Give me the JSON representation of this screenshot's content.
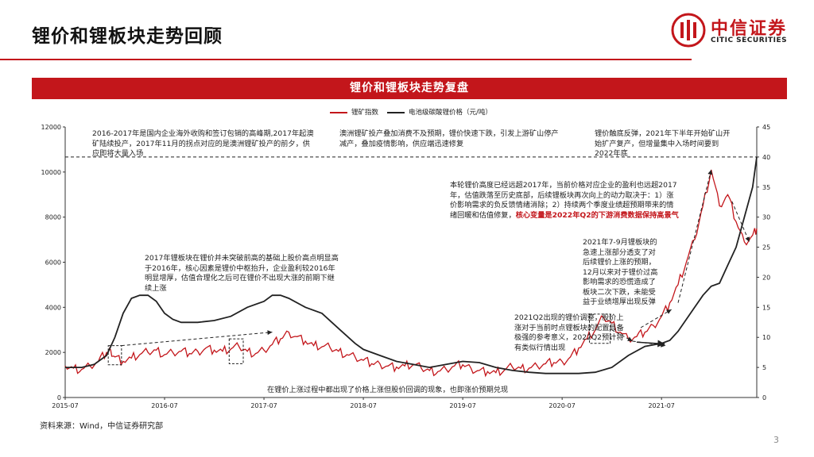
{
  "page": {
    "title": "锂价和锂板块走势回顾",
    "banner": "锂价和锂板块走势复盘",
    "source": "资料来源：Wind，中信证券研究部",
    "page_number": "3",
    "logo": {
      "cn": "中信证券",
      "en": "CITIC SECURITIES"
    },
    "colors": {
      "accent": "#c3161b",
      "dark_line": "#222222"
    }
  },
  "chart_data": {
    "type": "line",
    "title": "锂价和锂板块走势复盘",
    "x_ticks": [
      "2015-07",
      "2016-07",
      "2017-07",
      "2018-07",
      "2019-07",
      "2020-07",
      "2021-07"
    ],
    "x_tick_positions": [
      0,
      12,
      24,
      36,
      48,
      60,
      72
    ],
    "x_range": [
      0,
      83.5
    ],
    "ylim_left": [
      0,
      12000
    ],
    "y_ticks_left": [
      0,
      2000,
      4000,
      6000,
      8000,
      10000,
      12000
    ],
    "ylim_right": [
      0,
      45
    ],
    "y_ticks_right": [
      0,
      5,
      10,
      15,
      20,
      25,
      30,
      35,
      40,
      45
    ],
    "reference_line_right": 40,
    "grid": false,
    "legend_position": "top-center",
    "series": [
      {
        "name": "锂矿指数",
        "axis": "left",
        "color": "#c3161b",
        "points": [
          [
            0,
            1400
          ],
          [
            1,
            1300
          ],
          [
            2,
            1250
          ],
          [
            3,
            1400
          ],
          [
            4,
            1600
          ],
          [
            5,
            2000
          ],
          [
            5.5,
            2100
          ],
          [
            6,
            1800
          ],
          [
            7,
            1600
          ],
          [
            8,
            1750
          ],
          [
            9,
            1900
          ],
          [
            10,
            2000
          ],
          [
            11,
            2100
          ],
          [
            12,
            1900
          ],
          [
            13,
            2000
          ],
          [
            14,
            2050
          ],
          [
            15,
            1950
          ],
          [
            16,
            2050
          ],
          [
            17,
            2200
          ],
          [
            18,
            2100
          ],
          [
            19,
            2050
          ],
          [
            20,
            2150
          ],
          [
            21,
            2250
          ],
          [
            22,
            2050
          ],
          [
            23,
            1950
          ],
          [
            24,
            2100
          ],
          [
            25,
            2350
          ],
          [
            26,
            2600
          ],
          [
            27,
            2900
          ],
          [
            28,
            2700
          ],
          [
            29,
            2500
          ],
          [
            30,
            2300
          ],
          [
            31,
            2250
          ],
          [
            32,
            2200
          ],
          [
            33,
            2050
          ],
          [
            34,
            1900
          ],
          [
            35,
            1800
          ],
          [
            36,
            1650
          ],
          [
            37,
            1500
          ],
          [
            38,
            1500
          ],
          [
            39,
            1400
          ],
          [
            40,
            1350
          ],
          [
            41,
            1400
          ],
          [
            42,
            1450
          ],
          [
            43,
            1300
          ],
          [
            44,
            1200
          ],
          [
            45,
            1150
          ],
          [
            46,
            1250
          ],
          [
            47,
            1400
          ],
          [
            48,
            1450
          ],
          [
            49,
            1300
          ],
          [
            50,
            1200
          ],
          [
            51,
            1150
          ],
          [
            52,
            1100
          ],
          [
            53,
            1200
          ],
          [
            54,
            1350
          ],
          [
            55,
            1300
          ],
          [
            56,
            1300
          ],
          [
            57,
            1400
          ],
          [
            58,
            1500
          ],
          [
            59,
            1550
          ],
          [
            60,
            1600
          ],
          [
            61,
            1800
          ],
          [
            62,
            2200
          ],
          [
            63,
            2600
          ],
          [
            64,
            3000
          ],
          [
            65,
            3550
          ],
          [
            66,
            3300
          ],
          [
            67,
            2900
          ],
          [
            68,
            2600
          ],
          [
            69,
            2700
          ],
          [
            70,
            2900
          ],
          [
            71,
            3200
          ],
          [
            72,
            3600
          ],
          [
            73,
            4200
          ],
          [
            74,
            5000
          ],
          [
            75,
            6000
          ],
          [
            76,
            7000
          ],
          [
            77,
            8500
          ],
          [
            78,
            10100
          ],
          [
            79,
            8500
          ],
          [
            80,
            9000
          ],
          [
            81,
            7800
          ],
          [
            82,
            6900
          ],
          [
            83,
            7200
          ],
          [
            83.5,
            7500
          ]
        ]
      },
      {
        "name": "电池级碳酸锂价格（元/吨）",
        "axis": "right",
        "color": "#222222",
        "points": [
          [
            0,
            5
          ],
          [
            2,
            5
          ],
          [
            3.5,
            5.5
          ],
          [
            5,
            7
          ],
          [
            6,
            10
          ],
          [
            7,
            14
          ],
          [
            8,
            16.5
          ],
          [
            9,
            17
          ],
          [
            10,
            17
          ],
          [
            11,
            16
          ],
          [
            12,
            14
          ],
          [
            13,
            13
          ],
          [
            14,
            12.5
          ],
          [
            16,
            12.5
          ],
          [
            18,
            12.8
          ],
          [
            20,
            13.5
          ],
          [
            22,
            15
          ],
          [
            24,
            16
          ],
          [
            25,
            17
          ],
          [
            26,
            17
          ],
          [
            27,
            16.5
          ],
          [
            29,
            15
          ],
          [
            31,
            14
          ],
          [
            33,
            11.5
          ],
          [
            35,
            9
          ],
          [
            36,
            8
          ],
          [
            38,
            7
          ],
          [
            40,
            6
          ],
          [
            42,
            5.5
          ],
          [
            44,
            5
          ],
          [
            46,
            5.5
          ],
          [
            48,
            6
          ],
          [
            50,
            5.8
          ],
          [
            52,
            5
          ],
          [
            54,
            4.5
          ],
          [
            56,
            4.2
          ],
          [
            58,
            4
          ],
          [
            60,
            4
          ],
          [
            62,
            4
          ],
          [
            64,
            4.2
          ],
          [
            66,
            5
          ],
          [
            68,
            7
          ],
          [
            70,
            8.5
          ],
          [
            72,
            9
          ],
          [
            73,
            9.5
          ],
          [
            74,
            11
          ],
          [
            75,
            13
          ],
          [
            76,
            15
          ],
          [
            77,
            17
          ],
          [
            78,
            18.5
          ],
          [
            79,
            19
          ],
          [
            80,
            22
          ],
          [
            81,
            25
          ],
          [
            82,
            30
          ],
          [
            83,
            35
          ],
          [
            83.5,
            40
          ]
        ]
      }
    ],
    "legend": [
      "锂矿指数",
      "电池级碳酸锂价格（元/吨）"
    ],
    "annotations": {
      "top_left": "2016-2017年是国内企业海外收购和签订包销的高峰期,2017年起澳矿陆续投产，2017年11月的拐点对应的是澳洲锂矿投产的前夕，供应即将大量入场",
      "top_mid": "澳洲锂矿投产叠加消费不及预期，锂价快速下跌，引发上游矿山停产减产，叠加疫情影响，供应端迅速修复",
      "top_right": "锂价触底反弹，2021年下半年开始矿山开始扩产复产，但增量集中入场时间要到2022年底",
      "current_a": "本轮锂价高度已经远超2017年，当前价格对应企业的盈利也远超2017年，估值跌落至历史底部，后续锂板块再次向上的动力取决于：1）涨价影响需求的负反馈情绪消除；2）持续两个季度业绩超预期带来的情绪回暖和估值修复，",
      "current_hl": "核心变量是2022年Q2的下游消费数据保持高景气",
      "mid_left": "2017年锂板块在锂价并未突破前高的基础上股价高点明显高于2016年，核心因素是锂价中枢抬升，企业盈利较2016年明显增厚，估值合理化之后可在锂价不出现大涨的前期下继续上涨",
      "right_mid": "2021年7-9月锂板块的急速上涨部分透支了对后续锂价上涨的预期，12月以来对于锂价过高影响需求的恐慌造成了板块二次下跌，未能受益于业绩增厚出现反弹",
      "q2_note": "2021Q2出现的锂价调整，股价上涨对于当前时点锂板块的配置具备极强的参考意义，2022Q2预计将有类似行情出现",
      "bottom": "在锂价上涨过程中都出现了价格上涨但股价回调的现象，也即涨价预期兑现"
    }
  }
}
